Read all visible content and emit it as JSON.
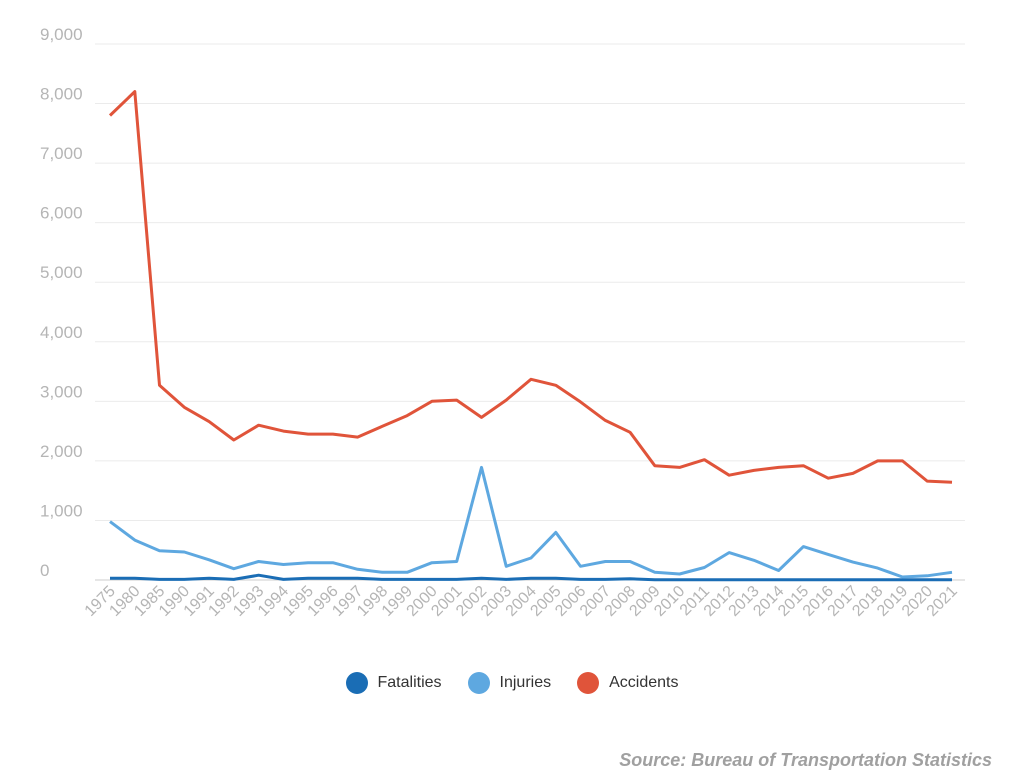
{
  "chart_data": {
    "type": "line",
    "title": "",
    "xlabel": "",
    "ylabel": "",
    "ylim": [
      0,
      9000
    ],
    "yticks": [
      0,
      1000,
      2000,
      3000,
      4000,
      5000,
      6000,
      7000,
      8000,
      9000
    ],
    "ytick_labels": [
      "0",
      "1,000",
      "2,000",
      "3,000",
      "4,000",
      "5,000",
      "6,000",
      "7,000",
      "8,000",
      "9,000"
    ],
    "grid": true,
    "legend_placement": "bottom-center",
    "categories": [
      "1975",
      "1980",
      "1985",
      "1990",
      "1991",
      "1992",
      "1993",
      "1994",
      "1995",
      "1996",
      "1997",
      "1998",
      "1999",
      "2000",
      "2001",
      "2002",
      "2003",
      "2004",
      "2005",
      "2006",
      "2007",
      "2008",
      "2009",
      "2010",
      "2011",
      "2012",
      "2013",
      "2014",
      "2015",
      "2016",
      "2017",
      "2018",
      "2019",
      "2020",
      "2021"
    ],
    "series": [
      {
        "name": "Fatalities",
        "color": "#1a6db5",
        "values": [
          30,
          30,
          10,
          10,
          30,
          10,
          80,
          10,
          30,
          30,
          30,
          10,
          10,
          10,
          10,
          30,
          10,
          30,
          30,
          10,
          10,
          20,
          5,
          5,
          5,
          5,
          5,
          5,
          5,
          5,
          5,
          5,
          5,
          5,
          5
        ]
      },
      {
        "name": "Injuries",
        "color": "#5ea8e0",
        "values": [
          980,
          670,
          490,
          470,
          340,
          190,
          310,
          260,
          290,
          290,
          180,
          130,
          130,
          290,
          310,
          1890,
          230,
          370,
          800,
          230,
          310,
          310,
          130,
          100,
          210,
          460,
          330,
          160,
          560,
          430,
          300,
          200,
          50,
          70,
          130
        ]
      },
      {
        "name": "Accidents",
        "color": "#e0543a",
        "values": [
          7800,
          8200,
          3270,
          2900,
          2660,
          2350,
          2600,
          2500,
          2450,
          2450,
          2400,
          2580,
          2760,
          3000,
          3020,
          2730,
          3020,
          3370,
          3270,
          2990,
          2680,
          2480,
          1920,
          1890,
          2020,
          1760,
          1840,
          1890,
          1920,
          1710,
          1790,
          2000,
          2000,
          1660,
          1640
        ]
      }
    ]
  },
  "source": "Source: Bureau of Transportation Statistics"
}
